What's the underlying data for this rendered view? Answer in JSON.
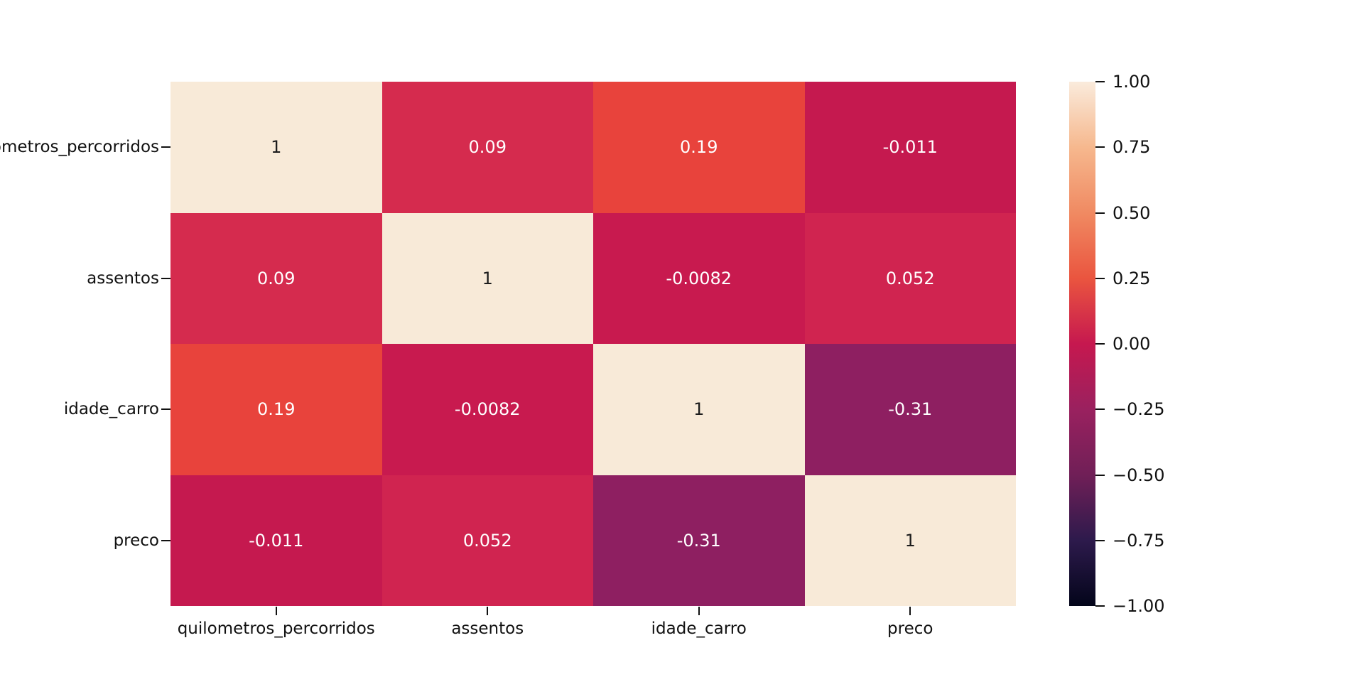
{
  "figure": {
    "background": "#ffffff",
    "note_first_row_label_truncated_at_left_edge": "etros_percorridos"
  },
  "chart_data": {
    "type": "heatmap",
    "title": "",
    "description": "Correlation matrix heatmap with seaborn rocket colormap and annotated values",
    "colormap": "rocket",
    "vmin": -1.0,
    "vmax": 1.0,
    "categories": [
      "quilometros_percorridos",
      "assentos",
      "idade_carro",
      "preco"
    ],
    "x_tick_labels": [
      "quilometros_percorridos",
      "assentos",
      "idade_carro",
      "preco"
    ],
    "y_tick_labels": [
      "quilometros_percorridos",
      "assentos",
      "idade_carro",
      "preco"
    ],
    "matrix": [
      [
        1,
        0.09,
        0.19,
        -0.011
      ],
      [
        0.09,
        1,
        -0.0082,
        0.052
      ],
      [
        0.19,
        -0.0082,
        1,
        -0.31
      ],
      [
        -0.011,
        0.052,
        -0.31,
        1
      ]
    ],
    "annotations": [
      [
        "1",
        "0.09",
        "0.19",
        "-0.011"
      ],
      [
        "0.09",
        "1",
        "-0.0082",
        "0.052"
      ],
      [
        "0.19",
        "-0.0082",
        "1",
        "-0.31"
      ],
      [
        "-0.011",
        "0.052",
        "-0.31",
        "1"
      ]
    ],
    "cell_colors": [
      [
        "#f8ead8",
        "#d52b4e",
        "#e8433c",
        "#c5194f"
      ],
      [
        "#d52b4e",
        "#f8ead8",
        "#c81a4f",
        "#d02450"
      ],
      [
        "#e8433c",
        "#c81a4f",
        "#f8ead8",
        "#8e1f61"
      ],
      [
        "#c5194f",
        "#d02450",
        "#8e1f61",
        "#f8ead8"
      ]
    ],
    "annotation_colors": [
      [
        "#1c1c1c",
        "#ffffff",
        "#ffffff",
        "#ffffff"
      ],
      [
        "#ffffff",
        "#1c1c1c",
        "#ffffff",
        "#ffffff"
      ],
      [
        "#ffffff",
        "#ffffff",
        "#1c1c1c",
        "#ffffff"
      ],
      [
        "#ffffff",
        "#ffffff",
        "#ffffff",
        "#1c1c1c"
      ]
    ],
    "grid": false,
    "legend_position": "colorbar-right",
    "colorbar": {
      "tick_labels": [
        "1.00",
        "0.75",
        "0.50",
        "0.25",
        "0.00",
        "−0.25",
        "−0.50",
        "−0.75",
        "−1.00"
      ],
      "tick_values": [
        1.0,
        0.75,
        0.5,
        0.25,
        0.0,
        -0.25,
        -0.5,
        -0.75,
        -1.0
      ],
      "gradient_top_to_bottom": [
        "#faebdc",
        "#f6b88e",
        "#f08a62",
        "#ea553f",
        "#c6184f",
        "#9a215f",
        "#701f57",
        "#2d1a4c",
        "#03051a"
      ]
    },
    "tick_color": "#111111"
  }
}
